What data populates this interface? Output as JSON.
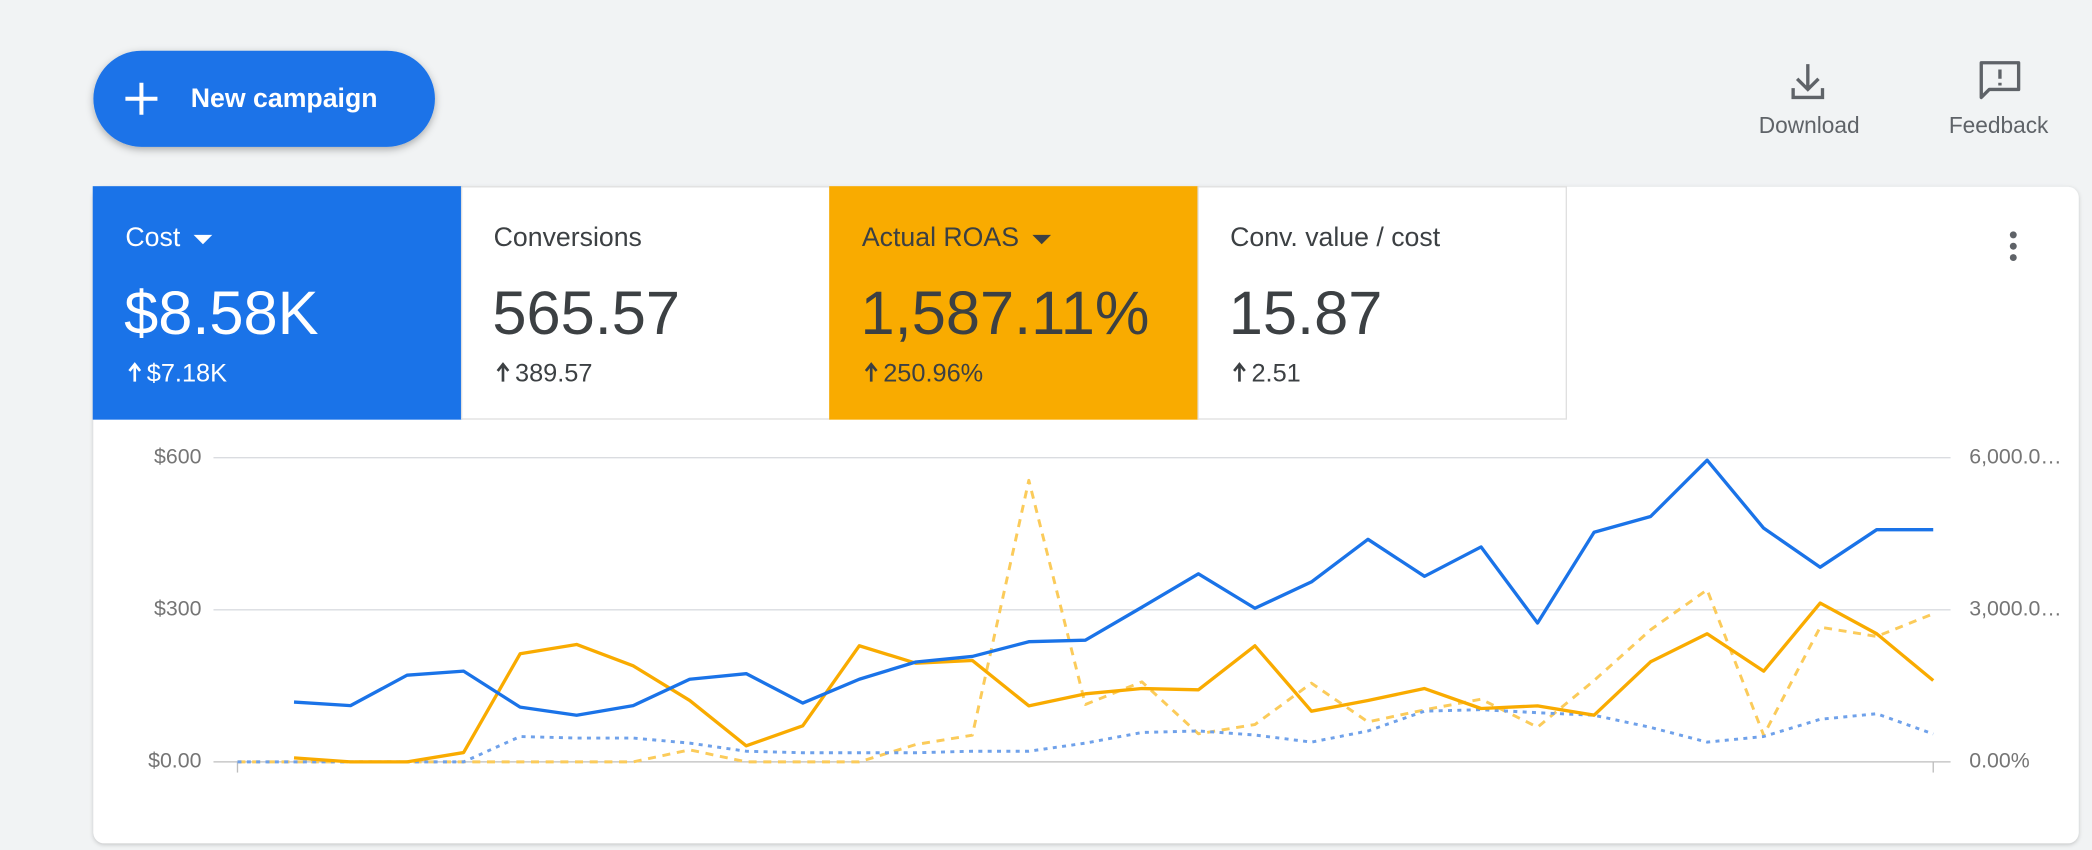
{
  "header": {
    "button": "New campaign",
    "actions": [
      "Download",
      "Feedback"
    ]
  },
  "scorecards": [
    {
      "label": "Cost",
      "value": "$8.58K",
      "change": "$7.18K",
      "color": "#1a73e8",
      "text_color": "#ffffff",
      "dropdown": true
    },
    {
      "label": "Conversions",
      "value": "565.57",
      "change": "389.57",
      "color": "#ffffff",
      "text_color": "#3c4043",
      "dropdown": false
    },
    {
      "label": "Actual ROAS",
      "value": "1,587.11%",
      "change": "250.96%",
      "color": "#f9ab00",
      "text_color": "#3c4043",
      "dropdown": true
    },
    {
      "label": "Conv. value / cost",
      "value": "15.87",
      "change": "2.51",
      "color": "#ffffff",
      "text_color": "#3c4043",
      "dropdown": false
    }
  ],
  "chart_data": {
    "type": "line",
    "grid": true,
    "ylim": [
      0,
      600
    ],
    "yticks": [
      {
        "value": 600,
        "label": "$600"
      },
      {
        "value": 300,
        "label": "$300"
      },
      {
        "value": 0,
        "label": "$0.00"
      }
    ],
    "y2lim": [
      0,
      6000
    ],
    "y2ticks": [
      {
        "value": 6000,
        "label": "6,000.0…"
      },
      {
        "value": 3000,
        "label": "3,000.0…"
      },
      {
        "value": 0,
        "label": "0.00%"
      }
    ],
    "series": [
      {
        "color": "#1a73e8",
        "dash": "solid",
        "axis": "y",
        "values": [
          null,
          118,
          111,
          171,
          179,
          108,
          92,
          111,
          163,
          174,
          116,
          163,
          197,
          208,
          237,
          240,
          305,
          371,
          303,
          355,
          439,
          366,
          424,
          274,
          453,
          484,
          595,
          461,
          384,
          458,
          458
        ]
      },
      {
        "color": "#f9ab00",
        "dash": "solid",
        "axis": "y2",
        "values": [
          null,
          79,
          0,
          0,
          184,
          2132,
          2316,
          1895,
          1211,
          316,
          711,
          2290,
          1947,
          2000,
          1105,
          1342,
          1447,
          1421,
          2290,
          1000,
          1211,
          1447,
          1053,
          1105,
          921,
          1974,
          2527,
          1790,
          3132,
          2527,
          1605
        ]
      },
      {
        "color": "#6fa1ea",
        "dash": "dotted",
        "axis": "y",
        "values": [
          0,
          0,
          0,
          0,
          0,
          50,
          47,
          47,
          37,
          21,
          18,
          18,
          18,
          21,
          21,
          37,
          58,
          61,
          53,
          39,
          61,
          100,
          103,
          97,
          92,
          68,
          39,
          50,
          84,
          95,
          55
        ]
      },
      {
        "color": "#fbcb5a",
        "dash": "dashed",
        "axis": "y2",
        "values": [
          0,
          0,
          0,
          0,
          0,
          0,
          0,
          0,
          237,
          0,
          0,
          0,
          342,
          526,
          5553,
          1132,
          1579,
          553,
          737,
          1553,
          789,
          1026,
          1237,
          684,
          1605,
          2606,
          3395,
          526,
          2658,
          2474,
          2921
        ]
      }
    ]
  }
}
